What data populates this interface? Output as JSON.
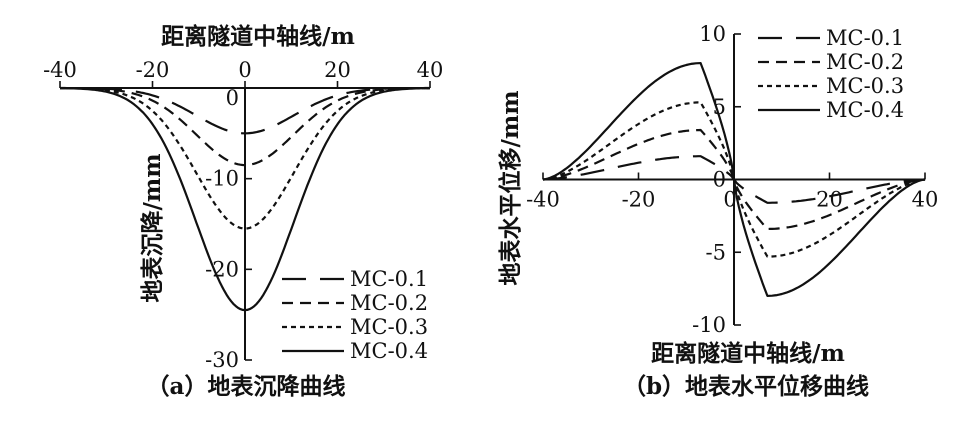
{
  "chart_data": [
    {
      "id": "a",
      "type": "line",
      "caption": "（a）地表沉降曲线",
      "xlabel": "距离隧道中轴线/m",
      "ylabel": "地表沉降/mm",
      "xlim": [
        -40,
        40
      ],
      "ylim": [
        -30,
        0
      ],
      "xticks": [
        "-40",
        "-20",
        "0",
        "20",
        "40"
      ],
      "xtick_values": [
        -40,
        -20,
        0,
        20,
        40
      ],
      "yticks": [
        "0",
        "-10",
        "-20",
        "-30"
      ],
      "ytick_values": [
        0,
        -10,
        -20,
        -30
      ],
      "legend_position": "bottom-right",
      "series": [
        {
          "name": "MC-0.1",
          "dash": "long-dash",
          "peak": -5.0,
          "width": 10.5
        },
        {
          "name": "MC-0.2",
          "dash": "dash",
          "peak": -8.5,
          "width": 10.5
        },
        {
          "name": "MC-0.3",
          "dash": "short-dash",
          "peak": -15.5,
          "width": 10.5
        },
        {
          "name": "MC-0.4",
          "dash": "solid",
          "peak": -24.5,
          "width": 10.5
        }
      ]
    },
    {
      "id": "b",
      "type": "line",
      "caption": "（b）地表水平位移曲线",
      "xlabel": "距离隧道中轴线/m",
      "ylabel": "地表水平位移/mm",
      "xlim": [
        -40,
        40
      ],
      "ylim": [
        -10,
        10
      ],
      "xticks": [
        "-40",
        "-20",
        "0",
        "20",
        "40"
      ],
      "xtick_values": [
        -40,
        -20,
        0,
        20,
        40
      ],
      "yticks": [
        "10",
        "5",
        "0",
        "-5",
        "-10"
      ],
      "ytick_values": [
        10,
        5,
        0,
        -5,
        -10
      ],
      "legend_position": "top-right",
      "series": [
        {
          "name": "MC-0.1",
          "dash": "long-dash",
          "peak": 1.6,
          "peak_x": -7
        },
        {
          "name": "MC-0.2",
          "dash": "dash",
          "peak": 3.4,
          "peak_x": -7
        },
        {
          "name": "MC-0.3",
          "dash": "short-dash",
          "peak": 5.3,
          "peak_x": -7
        },
        {
          "name": "MC-0.4",
          "dash": "solid",
          "peak": 8.0,
          "peak_x": -7
        }
      ]
    }
  ]
}
